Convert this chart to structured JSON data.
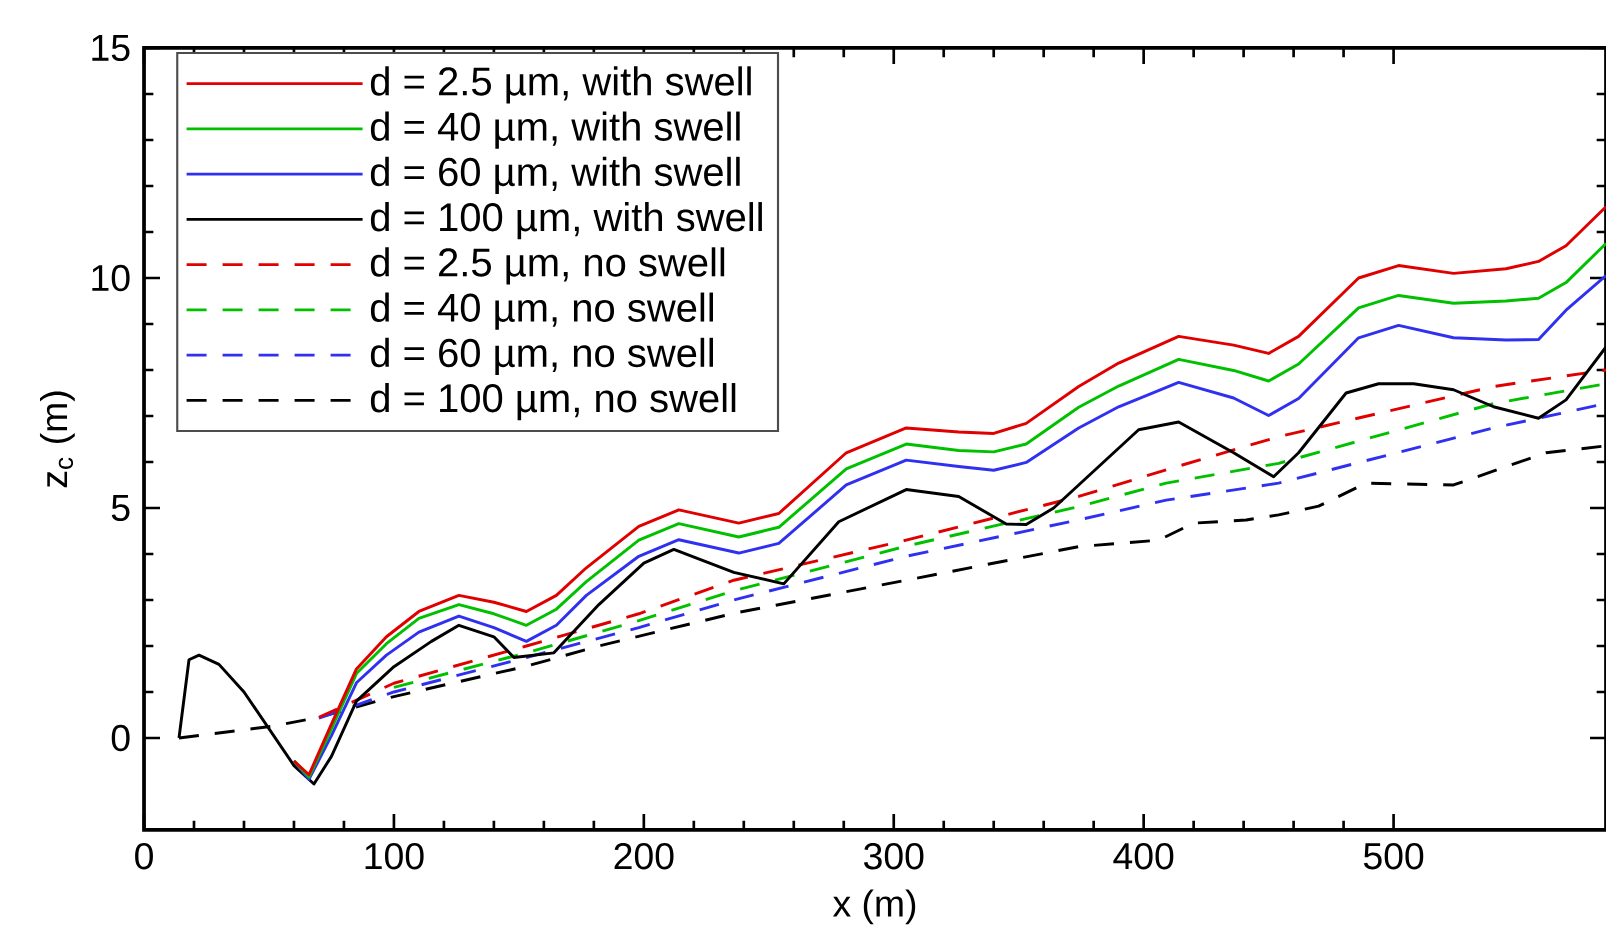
{
  "chart_data": {
    "type": "line",
    "xlabel": "x (m)",
    "ylabel": "z$_{c}$ (m)",
    "xlim": [
      0,
      585
    ],
    "ylim": [
      -2,
      15
    ],
    "xticks": [
      0,
      100,
      200,
      300,
      400,
      500
    ],
    "yticks": [
      0,
      5,
      10,
      15
    ],
    "legend": "top left",
    "series": [
      {
        "name": "d = 2.5 µm, with swell",
        "color": "#e00000",
        "line_style": "solid",
        "x": [
          60,
          66,
          75,
          85,
          97,
          110,
          126,
          140,
          153,
          165,
          177,
          198,
          214,
          238,
          254,
          281,
          305,
          326,
          340,
          353,
          374,
          390,
          414,
          436,
          450,
          462,
          486,
          502,
          524,
          545,
          558,
          569,
          585
        ],
        "values": [
          -0.5,
          -0.8,
          0.3,
          1.5,
          2.2,
          2.75,
          3.1,
          2.95,
          2.75,
          3.1,
          3.7,
          4.6,
          4.96,
          4.67,
          4.88,
          6.2,
          6.74,
          6.65,
          6.62,
          6.84,
          7.64,
          8.15,
          8.73,
          8.54,
          8.36,
          8.73,
          10.0,
          10.27,
          10.1,
          10.2,
          10.36,
          10.7,
          11.55
        ]
      },
      {
        "name": "d = 40 µm, with swell",
        "color": "#00c000",
        "line_style": "solid",
        "x": [
          60,
          66,
          75,
          85,
          97,
          110,
          126,
          140,
          153,
          165,
          177,
          198,
          214,
          238,
          254,
          281,
          305,
          326,
          340,
          353,
          374,
          390,
          414,
          436,
          450,
          462,
          486,
          502,
          524,
          545,
          558,
          569,
          585
        ],
        "values": [
          -0.5,
          -0.85,
          0.2,
          1.4,
          2.05,
          2.6,
          2.9,
          2.7,
          2.45,
          2.8,
          3.4,
          4.3,
          4.66,
          4.37,
          4.58,
          5.85,
          6.39,
          6.25,
          6.22,
          6.39,
          7.19,
          7.65,
          8.23,
          7.99,
          7.76,
          8.13,
          9.35,
          9.62,
          9.45,
          9.5,
          9.56,
          9.9,
          10.75
        ]
      },
      {
        "name": "d = 60 µm, with swell",
        "color": "#3030f0",
        "line_style": "solid",
        "x": [
          60,
          66,
          75,
          85,
          97,
          110,
          126,
          140,
          153,
          165,
          177,
          198,
          214,
          238,
          254,
          281,
          305,
          326,
          340,
          353,
          374,
          390,
          414,
          436,
          450,
          462,
          486,
          502,
          524,
          545,
          558,
          569,
          585
        ],
        "values": [
          -0.5,
          -0.9,
          0.05,
          1.2,
          1.8,
          2.3,
          2.65,
          2.4,
          2.1,
          2.45,
          3.1,
          3.95,
          4.31,
          4.02,
          4.23,
          5.5,
          6.04,
          5.9,
          5.82,
          5.99,
          6.74,
          7.2,
          7.73,
          7.39,
          7.01,
          7.38,
          8.7,
          8.97,
          8.7,
          8.65,
          8.66,
          9.3,
          10.05
        ]
      },
      {
        "name": "d = 100 µm, with swell",
        "color": "#000000",
        "line_style": "solid",
        "x": [
          14,
          18,
          22,
          30,
          40,
          50,
          60,
          68,
          75,
          85,
          100,
          115,
          126,
          140,
          148,
          164,
          182,
          200,
          212,
          236,
          256,
          278,
          305,
          326,
          345,
          353,
          364,
          374,
          398,
          414,
          436,
          452,
          462,
          481,
          494,
          508,
          524,
          540,
          558,
          569,
          585
        ],
        "values": [
          0,
          1.7,
          1.8,
          1.6,
          1.0,
          0.2,
          -0.6,
          -1.0,
          -0.4,
          0.8,
          1.55,
          2.1,
          2.45,
          2.2,
          1.75,
          1.85,
          2.9,
          3.8,
          4.1,
          3.6,
          3.35,
          4.7,
          5.4,
          5.25,
          4.65,
          4.64,
          5.0,
          5.5,
          6.7,
          6.87,
          6.2,
          5.68,
          6.2,
          7.5,
          7.7,
          7.7,
          7.57,
          7.2,
          6.95,
          7.35,
          8.5
        ]
      },
      {
        "name": "d = 2.5 µm, no swell",
        "color": "#e00000",
        "line_style": "dashed",
        "x": [
          70,
          100,
          153,
          198,
          236,
          305,
          374,
          409,
          454,
          540,
          585
        ],
        "values": [
          0.45,
          1.19,
          2.0,
          2.7,
          3.43,
          4.3,
          5.25,
          5.83,
          6.55,
          7.64,
          8.0
        ]
      },
      {
        "name": "d = 40 µm, no swell",
        "color": "#00c000",
        "line_style": "dashed",
        "x": [
          100,
          153,
          198,
          236,
          305,
          374,
          409,
          454,
          540,
          585
        ],
        "values": [
          1.1,
          1.85,
          2.55,
          3.2,
          4.17,
          5.03,
          5.54,
          5.97,
          7.27,
          7.7
        ]
      },
      {
        "name": "d = 60 µm, no swell",
        "color": "#3030f0",
        "line_style": "dashed",
        "x": [
          70,
          100,
          153,
          198,
          236,
          305,
          374,
          409,
          454,
          540,
          585
        ],
        "values": [
          0.43,
          1.0,
          1.75,
          2.4,
          3.0,
          3.95,
          4.74,
          5.17,
          5.54,
          6.74,
          7.27
        ]
      },
      {
        "name": "d = 100 µm, no swell",
        "color": "#000000",
        "line_style": "dashed",
        "x": [
          14,
          52,
          70,
          100,
          153,
          182,
          236,
          305,
          374,
          406,
          420,
          441,
          454,
          470,
          489,
          524,
          561,
          585
        ],
        "values": [
          0,
          0.26,
          0.45,
          0.9,
          1.56,
          2.0,
          2.71,
          3.43,
          4.16,
          4.3,
          4.67,
          4.74,
          4.85,
          5.04,
          5.54,
          5.5,
          6.2,
          6.35
        ]
      }
    ]
  }
}
